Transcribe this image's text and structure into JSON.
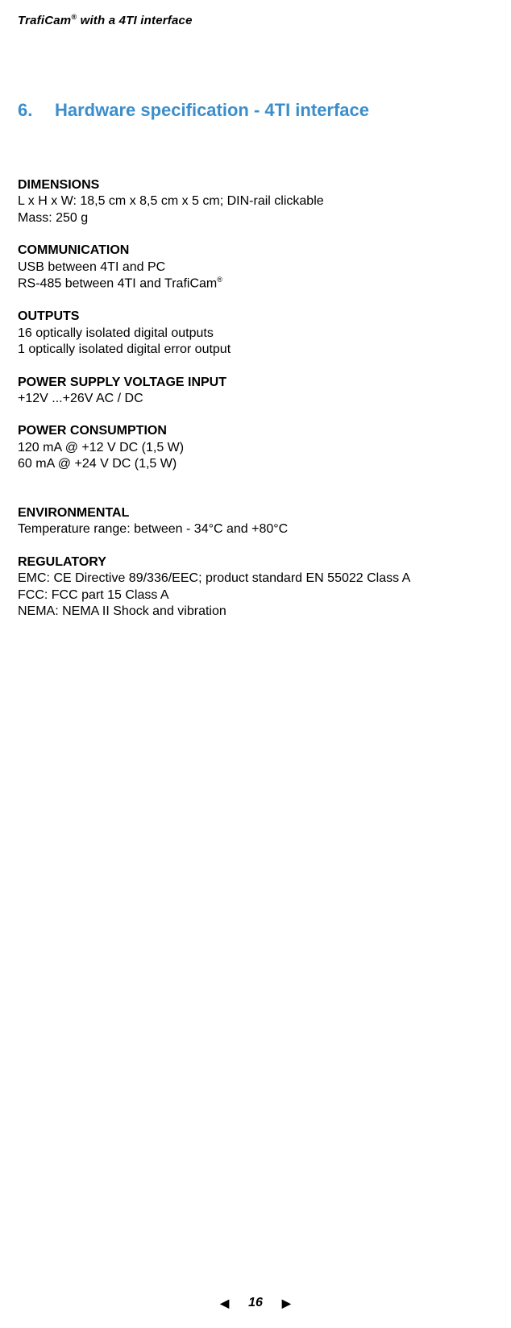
{
  "header": {
    "product": "TrafiCam",
    "reg": "®",
    "rest": " with a 4TI interface"
  },
  "section": {
    "number": "6.",
    "title": "Hardware specification - 4TI interface"
  },
  "blocks": [
    {
      "heading": "DIMENSIONS",
      "lines": [
        "L x H x W:  18,5 cm x 8,5 cm x  5 cm; DIN-rail clickable",
        "Mass: 250 g"
      ]
    },
    {
      "heading": "COMMUNICATION",
      "lines": [
        "USB between 4TI and PC",
        "RS-485 between 4TI and TrafiCam®"
      ],
      "sup_in_last": true
    },
    {
      "heading": "OUTPUTS",
      "lines": [
        "16 optically isolated digital outputs",
        "1 optically isolated digital error output"
      ]
    },
    {
      "heading": "POWER SUPPLY VOLTAGE INPUT",
      "lines": [
        "+12V ...+26V AC / DC"
      ]
    },
    {
      "heading": "POWER CONSUMPTION",
      "lines": [
        "120 mA @ +12 V DC (1,5 W)",
        "60 mA @ +24 V DC (1,5 W)"
      ]
    },
    {
      "heading": "ENVIRONMENTAL",
      "extra_gap": true,
      "lines": [
        "Temperature range: between - 34°C and +80°C"
      ]
    },
    {
      "heading": "REGULATORY",
      "lines": [
        "EMC: CE Directive 89/336/EEC; product standard EN 55022 Class A",
        "FCC: FCC part 15 Class A",
        "NEMA: NEMA II Shock and vibration"
      ]
    }
  ],
  "footer": {
    "prev": "◀",
    "page": "16",
    "next": "▶"
  }
}
